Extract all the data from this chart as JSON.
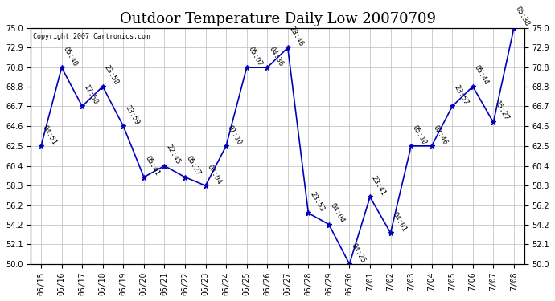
{
  "title": "Outdoor Temperature Daily Low 20070709",
  "copyright": "Copyright 2007 Cartronics.com",
  "dates": [
    "06/15",
    "06/16",
    "06/17",
    "06/18",
    "06/19",
    "06/20",
    "06/21",
    "06/22",
    "06/23",
    "06/24",
    "06/25",
    "06/26",
    "06/27",
    "06/28",
    "06/29",
    "06/30",
    "7/01",
    "7/02",
    "7/03",
    "7/04",
    "7/05",
    "7/06",
    "7/07",
    "7/08"
  ],
  "values": [
    62.5,
    70.8,
    66.7,
    68.8,
    64.6,
    59.2,
    60.4,
    59.2,
    58.3,
    62.5,
    70.8,
    70.8,
    72.9,
    55.4,
    54.2,
    50.0,
    57.1,
    53.3,
    62.5,
    62.5,
    66.7,
    68.8,
    65.0,
    75.0
  ],
  "annotations": [
    "04:51",
    "05:40",
    "17:50",
    "23:58",
    "23:59",
    "05:41",
    "22:45",
    "05:27",
    "04:04",
    "01:10",
    "05:07",
    "04:36",
    "23:46",
    "23:53",
    "04:04",
    "04:25",
    "23:41",
    "04:01",
    "05:18",
    "02:46",
    "23:57",
    "05:44",
    "15:27",
    "05:38"
  ],
  "ylim": [
    50.0,
    75.0
  ],
  "yticks": [
    50.0,
    52.1,
    54.2,
    56.2,
    58.3,
    60.4,
    62.5,
    64.6,
    66.7,
    68.8,
    70.8,
    72.9,
    75.0
  ],
  "line_color": "#0000bb",
  "marker_color": "#0000bb",
  "bg_color": "#ffffff",
  "grid_color": "#bbbbbb",
  "title_fontsize": 13,
  "annot_fontsize": 6.5,
  "tick_fontsize": 7
}
